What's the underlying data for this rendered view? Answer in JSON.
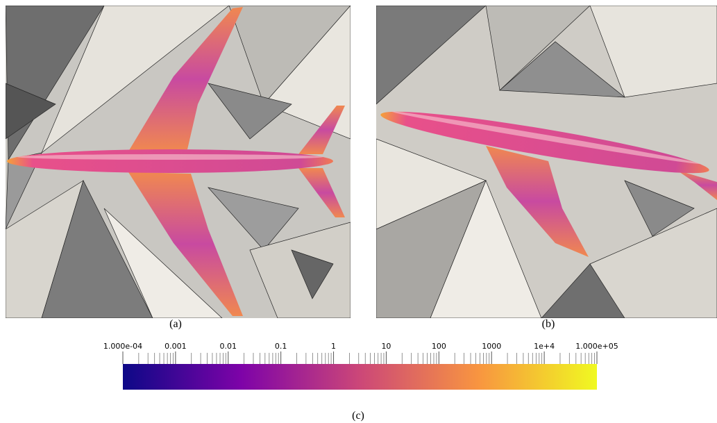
{
  "panels": [
    {
      "caption": "(a)"
    },
    {
      "caption": "(b)"
    }
  ],
  "colorbar": {
    "caption": "(c)",
    "log_scale": true,
    "lim": [
      0.0001,
      100000
    ],
    "colors": [
      "#0d0887",
      "#7e03a8",
      "#cc4778",
      "#f89540",
      "#f0f921"
    ],
    "ticks": [
      {
        "value": 0.0001,
        "label": "1.000e-04"
      },
      0.001,
      0.01,
      0.1,
      1,
      10,
      100,
      1000,
      {
        "value": 10000,
        "label": "1e+4"
      },
      {
        "value": 100000,
        "label": "1.000e+05"
      }
    ]
  }
}
